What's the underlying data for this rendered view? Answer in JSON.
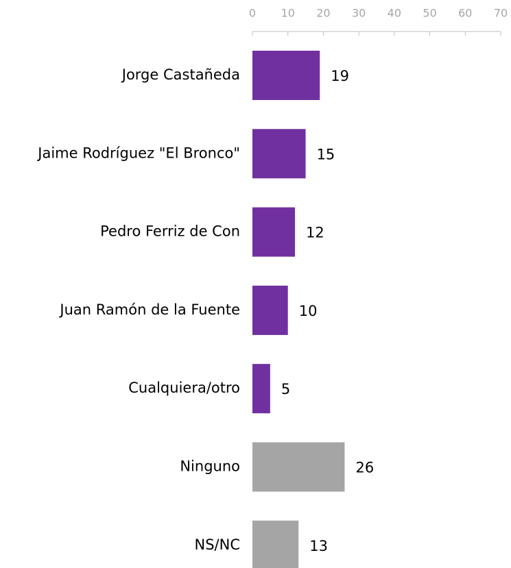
{
  "chart_data": {
    "type": "bar",
    "orientation": "horizontal",
    "categories": [
      "Jorge Castañeda",
      "Jaime Rodríguez \"El Bronco\"",
      "Pedro Ferriz de Con",
      "Juan Ramón de la Fuente",
      "Cualquiera/otro",
      "Ninguno",
      "NS/NC"
    ],
    "values": [
      19,
      15,
      12,
      10,
      5,
      26,
      13
    ],
    "colors": [
      "#7030a0",
      "#7030a0",
      "#7030a0",
      "#7030a0",
      "#7030a0",
      "#a5a5a5",
      "#a5a5a5"
    ],
    "xlim": [
      0,
      70
    ],
    "xticks": [
      0,
      10,
      20,
      30,
      40,
      50,
      60,
      70
    ],
    "grid": false
  }
}
